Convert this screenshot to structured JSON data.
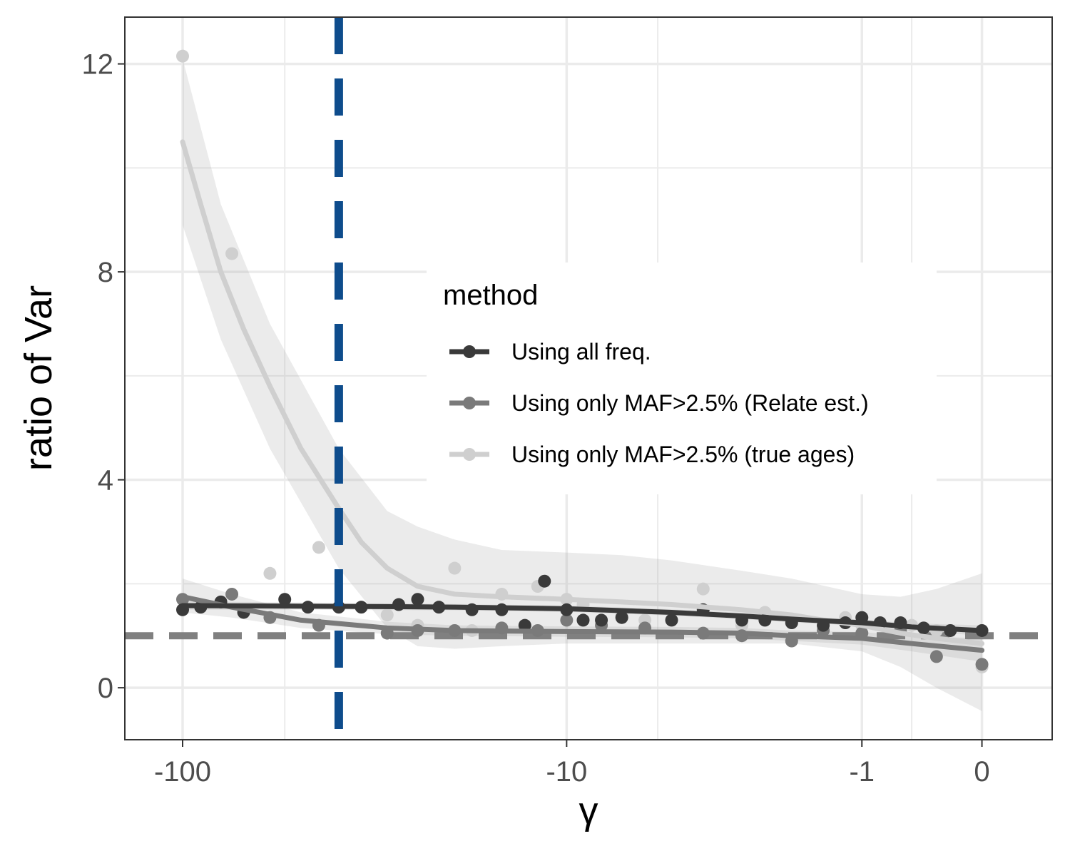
{
  "chart_data": {
    "type": "scatter",
    "xlabel": "γ",
    "ylabel": "ratio of Var",
    "x_scale": "pseudo-log",
    "xlim": [
      -140,
      0.5
    ],
    "ylim": [
      -1.0,
      12.9
    ],
    "x_ticks": [
      {
        "value": -100,
        "label": "-100"
      },
      {
        "value": -10,
        "label": "-10"
      },
      {
        "value": -1,
        "label": "-1"
      },
      {
        "value": 0,
        "label": "0"
      }
    ],
    "y_ticks": [
      {
        "value": 0,
        "label": "0"
      },
      {
        "value": 4,
        "label": "4"
      },
      {
        "value": 8,
        "label": "8"
      },
      {
        "value": 12,
        "label": "12"
      }
    ],
    "grid": true,
    "reference_lines": [
      {
        "orientation": "horizontal",
        "value": 1,
        "color": "#808080",
        "style": "dashed"
      },
      {
        "orientation": "vertical",
        "value": -40,
        "color": "#0e4c8c",
        "style": "dashed"
      }
    ],
    "legend": {
      "title": "method",
      "position": "inside-center-right"
    },
    "series": [
      {
        "name": "Using only MAF>2.5% (true ages)",
        "color": "#cfcfcf",
        "points": [
          [
            -100,
            12.15
          ],
          [
            -75,
            8.35
          ],
          [
            -60,
            2.2
          ],
          [
            -45,
            2.7
          ],
          [
            -30,
            1.4
          ],
          [
            -25,
            1.2
          ],
          [
            -20,
            2.3
          ],
          [
            -18,
            1.1
          ],
          [
            -15,
            1.8
          ],
          [
            -12,
            1.95
          ],
          [
            -10,
            1.7
          ],
          [
            -9,
            1.6
          ],
          [
            -7,
            1.4
          ],
          [
            -6,
            1.3
          ],
          [
            -4,
            1.9
          ],
          [
            -3,
            1.2
          ],
          [
            -2.5,
            1.45
          ],
          [
            -2,
            1.3
          ],
          [
            -1.5,
            1.1
          ],
          [
            -1.2,
            1.35
          ],
          [
            -1,
            1.2
          ],
          [
            -0.5,
            1.2
          ],
          [
            -0.3,
            1.1
          ],
          [
            0,
            0.4
          ]
        ],
        "fit": [
          [
            -100,
            10.5
          ],
          [
            -90,
            9.3
          ],
          [
            -80,
            8.0
          ],
          [
            -70,
            6.9
          ],
          [
            -60,
            5.8
          ],
          [
            -50,
            4.6
          ],
          [
            -40,
            3.45
          ],
          [
            -35,
            2.8
          ],
          [
            -30,
            2.3
          ],
          [
            -25,
            1.95
          ],
          [
            -20,
            1.8
          ],
          [
            -15,
            1.75
          ],
          [
            -10,
            1.7
          ],
          [
            -7,
            1.65
          ],
          [
            -5,
            1.6
          ],
          [
            -3,
            1.5
          ],
          [
            -2,
            1.4
          ],
          [
            -1.5,
            1.3
          ],
          [
            -1,
            1.2
          ],
          [
            -0.6,
            1.05
          ],
          [
            -0.3,
            0.95
          ],
          [
            0,
            0.85
          ]
        ],
        "ci_lower": [
          [
            -100,
            8.9
          ],
          [
            -80,
            6.7
          ],
          [
            -60,
            4.6
          ],
          [
            -40,
            2.3
          ],
          [
            -30,
            1.15
          ],
          [
            -25,
            0.8
          ],
          [
            -20,
            0.75
          ],
          [
            -15,
            0.8
          ],
          [
            -10,
            0.85
          ],
          [
            -7,
            0.85
          ],
          [
            -5,
            0.85
          ],
          [
            -3,
            0.85
          ],
          [
            -2,
            0.85
          ],
          [
            -1,
            0.7
          ],
          [
            -0.6,
            0.4
          ],
          [
            -0.3,
            0.0
          ],
          [
            0,
            -0.45
          ]
        ],
        "ci_upper": [
          [
            -100,
            12.1
          ],
          [
            -80,
            9.3
          ],
          [
            -60,
            7.0
          ],
          [
            -40,
            4.6
          ],
          [
            -30,
            3.4
          ],
          [
            -25,
            3.1
          ],
          [
            -20,
            2.85
          ],
          [
            -15,
            2.65
          ],
          [
            -10,
            2.6
          ],
          [
            -7,
            2.55
          ],
          [
            -5,
            2.45
          ],
          [
            -3,
            2.25
          ],
          [
            -2,
            2.1
          ],
          [
            -1,
            1.8
          ],
          [
            -0.6,
            1.75
          ],
          [
            -0.3,
            1.9
          ],
          [
            0,
            2.2
          ]
        ]
      },
      {
        "name": "Using only MAF>2.5% (Relate est.)",
        "color": "#7a7a7a",
        "points": [
          [
            -100,
            1.7
          ],
          [
            -75,
            1.8
          ],
          [
            -60,
            1.35
          ],
          [
            -45,
            1.2
          ],
          [
            -30,
            1.05
          ],
          [
            -25,
            1.1
          ],
          [
            -20,
            1.1
          ],
          [
            -15,
            1.15
          ],
          [
            -12,
            1.1
          ],
          [
            -10,
            1.3
          ],
          [
            -8,
            1.2
          ],
          [
            -6,
            1.15
          ],
          [
            -4,
            1.05
          ],
          [
            -3,
            1.0
          ],
          [
            -2,
            0.9
          ],
          [
            -1.5,
            1.1
          ],
          [
            -1,
            1.05
          ],
          [
            -0.6,
            1.1
          ],
          [
            -0.3,
            0.6
          ],
          [
            0,
            0.45
          ]
        ],
        "fit": [
          [
            -100,
            1.75
          ],
          [
            -75,
            1.55
          ],
          [
            -50,
            1.3
          ],
          [
            -30,
            1.15
          ],
          [
            -20,
            1.1
          ],
          [
            -10,
            1.08
          ],
          [
            -5,
            1.07
          ],
          [
            -3,
            1.05
          ],
          [
            -2,
            1.0
          ],
          [
            -1,
            0.95
          ],
          [
            -0.5,
            0.85
          ],
          [
            0,
            0.72
          ]
        ],
        "ci_lower": [
          [
            -100,
            1.45
          ],
          [
            -75,
            1.35
          ],
          [
            -50,
            1.15
          ],
          [
            -30,
            1.03
          ],
          [
            -20,
            1.0
          ],
          [
            -10,
            0.98
          ],
          [
            -5,
            0.97
          ],
          [
            -3,
            0.95
          ],
          [
            -2,
            0.9
          ],
          [
            -1,
            0.83
          ],
          [
            -0.5,
            0.7
          ],
          [
            0,
            0.5
          ]
        ],
        "ci_upper": [
          [
            -100,
            2.1
          ],
          [
            -75,
            1.8
          ],
          [
            -50,
            1.45
          ],
          [
            -30,
            1.27
          ],
          [
            -20,
            1.2
          ],
          [
            -10,
            1.18
          ],
          [
            -5,
            1.17
          ],
          [
            -3,
            1.15
          ],
          [
            -2,
            1.1
          ],
          [
            -1,
            1.07
          ],
          [
            -0.5,
            1.0
          ],
          [
            0,
            0.95
          ]
        ]
      },
      {
        "name": "Using all freq.",
        "color": "#3a3a3a",
        "points": [
          [
            -100,
            1.5
          ],
          [
            -90,
            1.55
          ],
          [
            -80,
            1.65
          ],
          [
            -70,
            1.45
          ],
          [
            -55,
            1.7
          ],
          [
            -48,
            1.55
          ],
          [
            -40,
            1.55
          ],
          [
            -35,
            1.55
          ],
          [
            -28,
            1.6
          ],
          [
            -25,
            1.7
          ],
          [
            -22,
            1.55
          ],
          [
            -18,
            1.5
          ],
          [
            -15,
            1.5
          ],
          [
            -13,
            1.2
          ],
          [
            -11.5,
            2.05
          ],
          [
            -10,
            1.5
          ],
          [
            -9,
            1.3
          ],
          [
            -8,
            1.3
          ],
          [
            -7,
            1.35
          ],
          [
            -5,
            1.3
          ],
          [
            -4,
            1.5
          ],
          [
            -3,
            1.3
          ],
          [
            -2.5,
            1.3
          ],
          [
            -2,
            1.25
          ],
          [
            -1.5,
            1.2
          ],
          [
            -1.2,
            1.25
          ],
          [
            -1,
            1.35
          ],
          [
            -0.8,
            1.25
          ],
          [
            -0.6,
            1.25
          ],
          [
            -0.4,
            1.15
          ],
          [
            -0.2,
            1.1
          ],
          [
            0,
            1.1
          ]
        ],
        "fit": [
          [
            -100,
            1.58
          ],
          [
            -50,
            1.57
          ],
          [
            -30,
            1.56
          ],
          [
            -20,
            1.55
          ],
          [
            -10,
            1.52
          ],
          [
            -5,
            1.45
          ],
          [
            -3,
            1.38
          ],
          [
            -2,
            1.32
          ],
          [
            -1,
            1.25
          ],
          [
            -0.5,
            1.17
          ],
          [
            0,
            1.1
          ]
        ],
        "ci_lower": [
          [
            -100,
            1.5
          ],
          [
            -50,
            1.5
          ],
          [
            -20,
            1.49
          ],
          [
            -10,
            1.46
          ],
          [
            -5,
            1.39
          ],
          [
            -3,
            1.32
          ],
          [
            -2,
            1.26
          ],
          [
            -1,
            1.19
          ],
          [
            -0.5,
            1.1
          ],
          [
            0,
            1.0
          ]
        ],
        "ci_upper": [
          [
            -100,
            1.66
          ],
          [
            -50,
            1.64
          ],
          [
            -20,
            1.61
          ],
          [
            -10,
            1.58
          ],
          [
            -5,
            1.51
          ],
          [
            -3,
            1.44
          ],
          [
            -2,
            1.38
          ],
          [
            -1,
            1.31
          ],
          [
            -0.5,
            1.24
          ],
          [
            0,
            1.2
          ]
        ]
      }
    ]
  }
}
